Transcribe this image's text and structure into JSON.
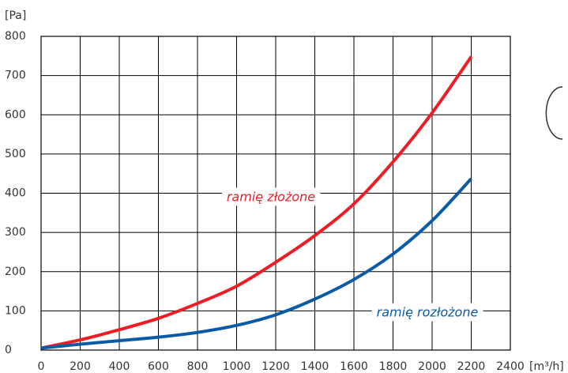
{
  "chart_data": {
    "type": "line",
    "y_label": "[Pa]",
    "x_label": "[m³/h]",
    "x": [
      0,
      200,
      400,
      600,
      800,
      1000,
      1200,
      1400,
      1600,
      1800,
      2000,
      2200
    ],
    "series": [
      {
        "name": "ramię złożone",
        "color": "#ee1c25",
        "values": [
          5,
          26,
          52,
          81,
          119,
          163,
          224,
          292,
          373,
          480,
          605,
          748
        ]
      },
      {
        "name": "ramię rozłożone",
        "color": "#0a5aa5",
        "values": [
          5,
          15,
          24,
          33,
          45,
          63,
          90,
          130,
          180,
          245,
          330,
          437
        ]
      }
    ],
    "xlim": [
      0,
      2400
    ],
    "xticks": [
      0,
      200,
      400,
      600,
      800,
      1000,
      1200,
      1400,
      1600,
      1800,
      2000,
      2200,
      2400
    ],
    "ylim": [
      0,
      800
    ],
    "yticks": [
      0,
      100,
      200,
      300,
      400,
      500,
      600,
      700,
      800
    ],
    "grid": true
  }
}
